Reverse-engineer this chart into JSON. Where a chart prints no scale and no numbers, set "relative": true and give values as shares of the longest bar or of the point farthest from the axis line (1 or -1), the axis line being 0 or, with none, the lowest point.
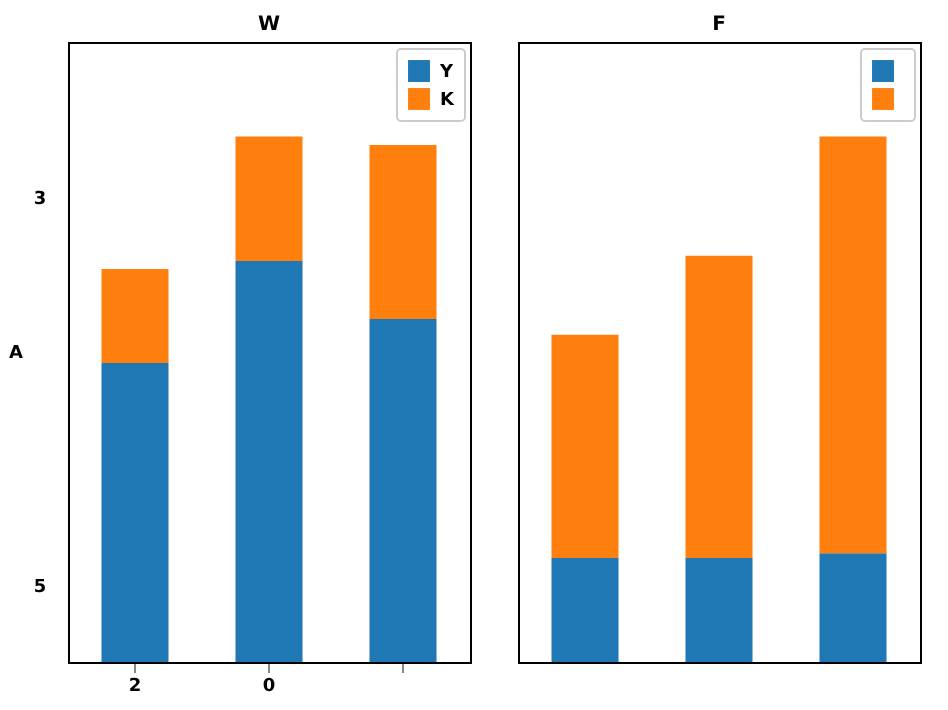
{
  "chart_data": [
    {
      "type": "bar",
      "title": "W",
      "ylabel": "A",
      "categories": [
        "2",
        "0",
        null
      ],
      "stacked": true,
      "legend": "top right",
      "relative": true,
      "annotations": [
        "3",
        "5"
      ],
      "series": [
        {
          "name": "Y",
          "color": "#1f77b4",
          "values": [
            0.569,
            0.763,
            0.653
          ]
        },
        {
          "name": "K",
          "color": "#ff7f0e",
          "values": [
            0.179,
            0.237,
            0.331
          ]
        }
      ]
    },
    {
      "type": "bar",
      "title": "F",
      "categories": [
        null,
        null,
        null
      ],
      "stacked": true,
      "legend": "top right",
      "tick_labels": false,
      "relative": true,
      "series": [
        {
          "color": "#1f77b4",
          "values": [
            0.198,
            0.198,
            0.207
          ]
        },
        {
          "color": "#ff7f0e",
          "values": [
            0.425,
            0.575,
            0.793
          ]
        }
      ]
    }
  ]
}
